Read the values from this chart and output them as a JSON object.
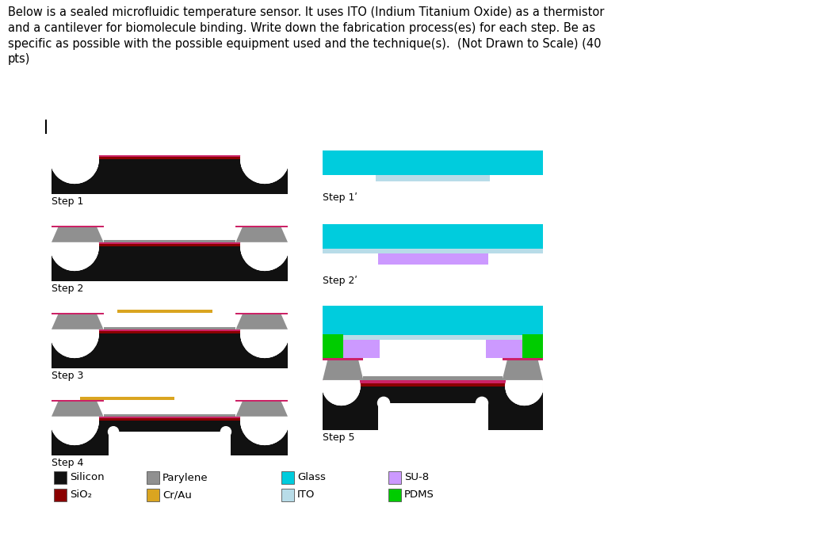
{
  "title_text": "Below is a sealed microfluidic temperature sensor. It uses ITO (Indium Titanium Oxide) as a thermistor\nand a cantilever for biomolecule binding. Write down the fabrication process(es) for each step. Be as\nspecific as possible with the possible equipment used and the technique(s).  (Not Drawn to Scale) (40\npts)",
  "colors": {
    "silicon": "#111111",
    "sio2": "#8B0000",
    "parylene": "#909090",
    "crau": "#DAA520",
    "glass": "#00CCDD",
    "ito": "#B8DCE8",
    "su8": "#CC99FF",
    "pdms": "#00CC00",
    "white": "#FFFFFF",
    "pink": "#CC2266",
    "bg": "#FFFFFF"
  },
  "legend_cols": [
    [
      [
        "Silicon",
        "#111111"
      ],
      [
        "SiO₂",
        "#8B0000"
      ]
    ],
    [
      [
        "Parylene",
        "#909090"
      ],
      [
        "Cr/Au",
        "#DAA520"
      ]
    ],
    [
      [
        "Glass",
        "#00CCDD"
      ],
      [
        "ITO",
        "#B8DCE8"
      ]
    ],
    [
      [
        "SU-8",
        "#CC99FF"
      ],
      [
        "PDMS",
        "#00CC00"
      ]
    ]
  ]
}
